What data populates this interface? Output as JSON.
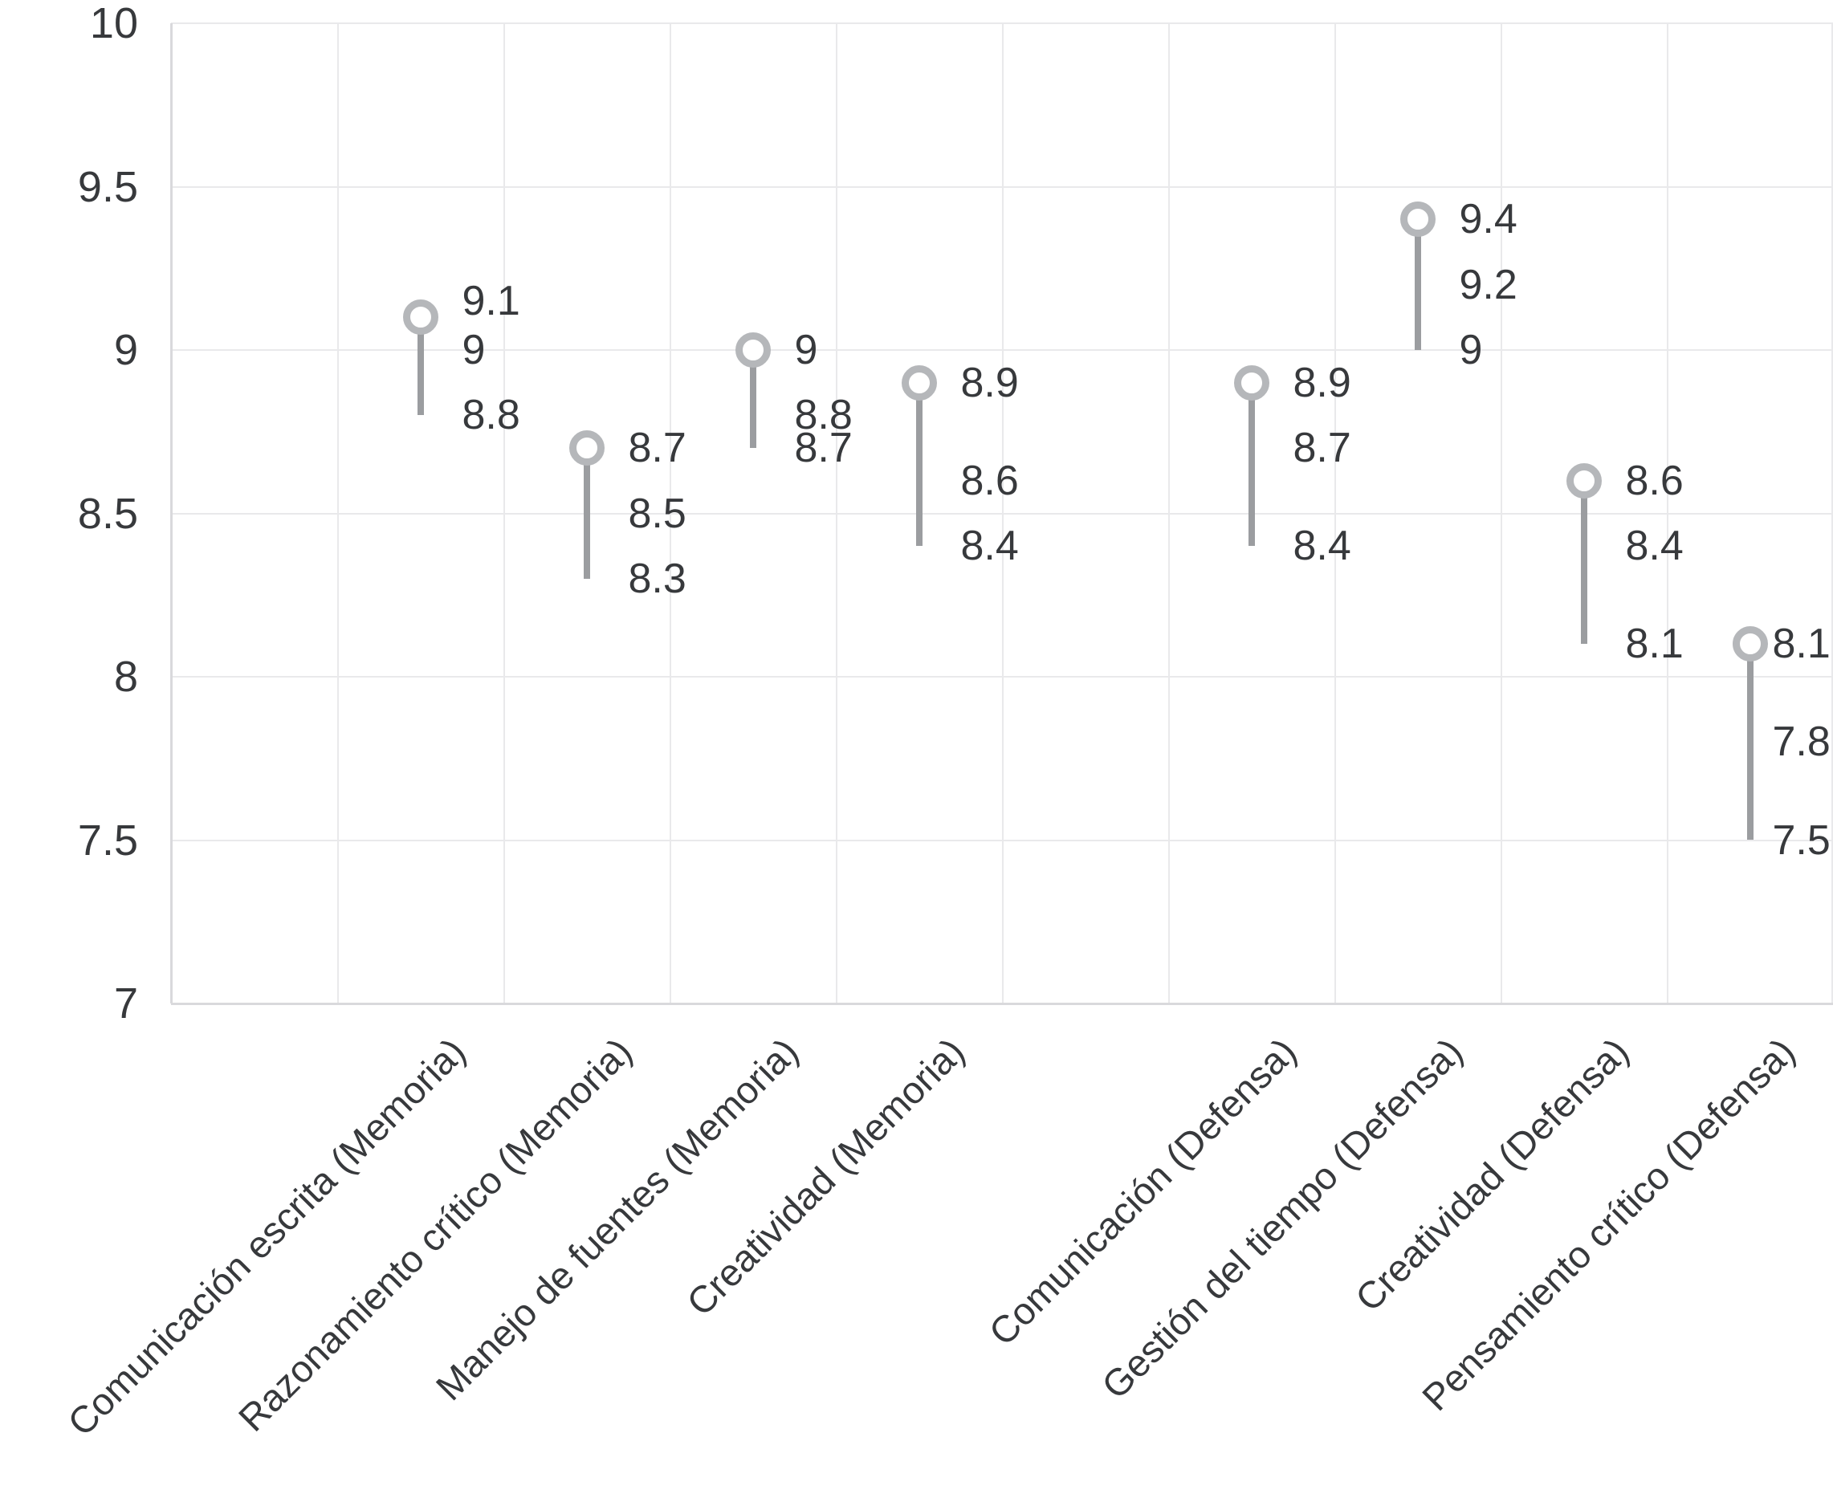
{
  "chart_data": {
    "type": "lollipop-range",
    "title": "",
    "xlabel": "",
    "ylabel": "",
    "ylim": [
      7,
      10
    ],
    "yticks": [
      10,
      9.5,
      9,
      8.5,
      8,
      7.5,
      7
    ],
    "ytick_labels": [
      "10",
      "9.5",
      "9",
      "8.5",
      "8",
      "7.5",
      "7"
    ],
    "grid": "both",
    "legend": "none",
    "x_slots": 10,
    "note_layout": "8 categories placed in slots 1-4 (Memoria group) and 6-9 (Defensa group); slots 0 and 5 empty",
    "series": [
      {
        "label": "Comunicación escrita (Memoria)",
        "slot": 1,
        "max": 9.1,
        "mid": 9,
        "min": 8.8,
        "value_labels": [
          "9.1",
          "9",
          "8.8"
        ]
      },
      {
        "label": "Razonamiento crítico (Memoria)",
        "slot": 2,
        "max": 8.7,
        "mid": 8.5,
        "min": 8.3,
        "value_labels": [
          "8.7",
          "8.5",
          "8.3"
        ]
      },
      {
        "label": "Manejo de fuentes (Memoria)",
        "slot": 3,
        "max": 9,
        "mid": 8.8,
        "min": 8.7,
        "value_labels": [
          "9",
          "8.8",
          "8.7"
        ]
      },
      {
        "label": "Creatividad (Memoria)",
        "slot": 4,
        "max": 8.9,
        "mid": 8.6,
        "min": 8.4,
        "value_labels": [
          "8.9",
          "8.6",
          "8.4"
        ]
      },
      {
        "label": "Comunicación (Defensa)",
        "slot": 6,
        "max": 8.9,
        "mid": 8.7,
        "min": 8.4,
        "value_labels": [
          "8.9",
          "8.7",
          "8.4"
        ]
      },
      {
        "label": "Gestión del tiempo (Defensa)",
        "slot": 7,
        "max": 9.4,
        "mid": 9.2,
        "min": 9,
        "value_labels": [
          "9.4",
          "9.2",
          "9"
        ]
      },
      {
        "label": "Creatividad (Defensa)",
        "slot": 8,
        "max": 8.6,
        "mid": 8.4,
        "min": 8.1,
        "value_labels": [
          "8.6",
          "8.4",
          "8.1"
        ]
      },
      {
        "label": "Pensamiento crítico (Defensa)",
        "slot": 9,
        "max": 8.1,
        "mid": 7.8,
        "min": 7.5,
        "value_labels": [
          "8.1",
          "7.8",
          "7.5"
        ]
      }
    ],
    "colors": {
      "background": "#ffffff",
      "gridline": "#e9e9eb",
      "axis_line": "#d9d9dc",
      "stem": "#9b9da0",
      "marker_ring": "#b5b7ba",
      "marker_fill": "#ffffff",
      "text": "#37393c"
    }
  }
}
